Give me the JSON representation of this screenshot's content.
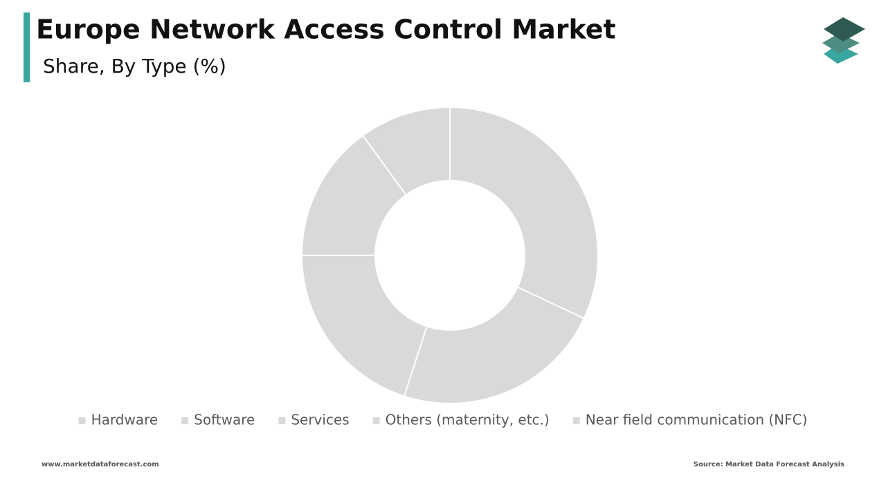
{
  "chart_data": {
    "type": "donut",
    "title": "Europe Network Access Control Market",
    "subtitle": "Share, By Type (%)",
    "categories": [
      "Hardware",
      "Software",
      "Services",
      "Others (maternity, etc.)",
      "Near field communication (NFC)"
    ],
    "values": [
      32,
      23,
      20,
      15,
      10
    ],
    "color": "#d9d9d9"
  },
  "footer": {
    "website": "www.marketdataforecast.com",
    "source": "Source: Market Data Forecast Analysis"
  }
}
